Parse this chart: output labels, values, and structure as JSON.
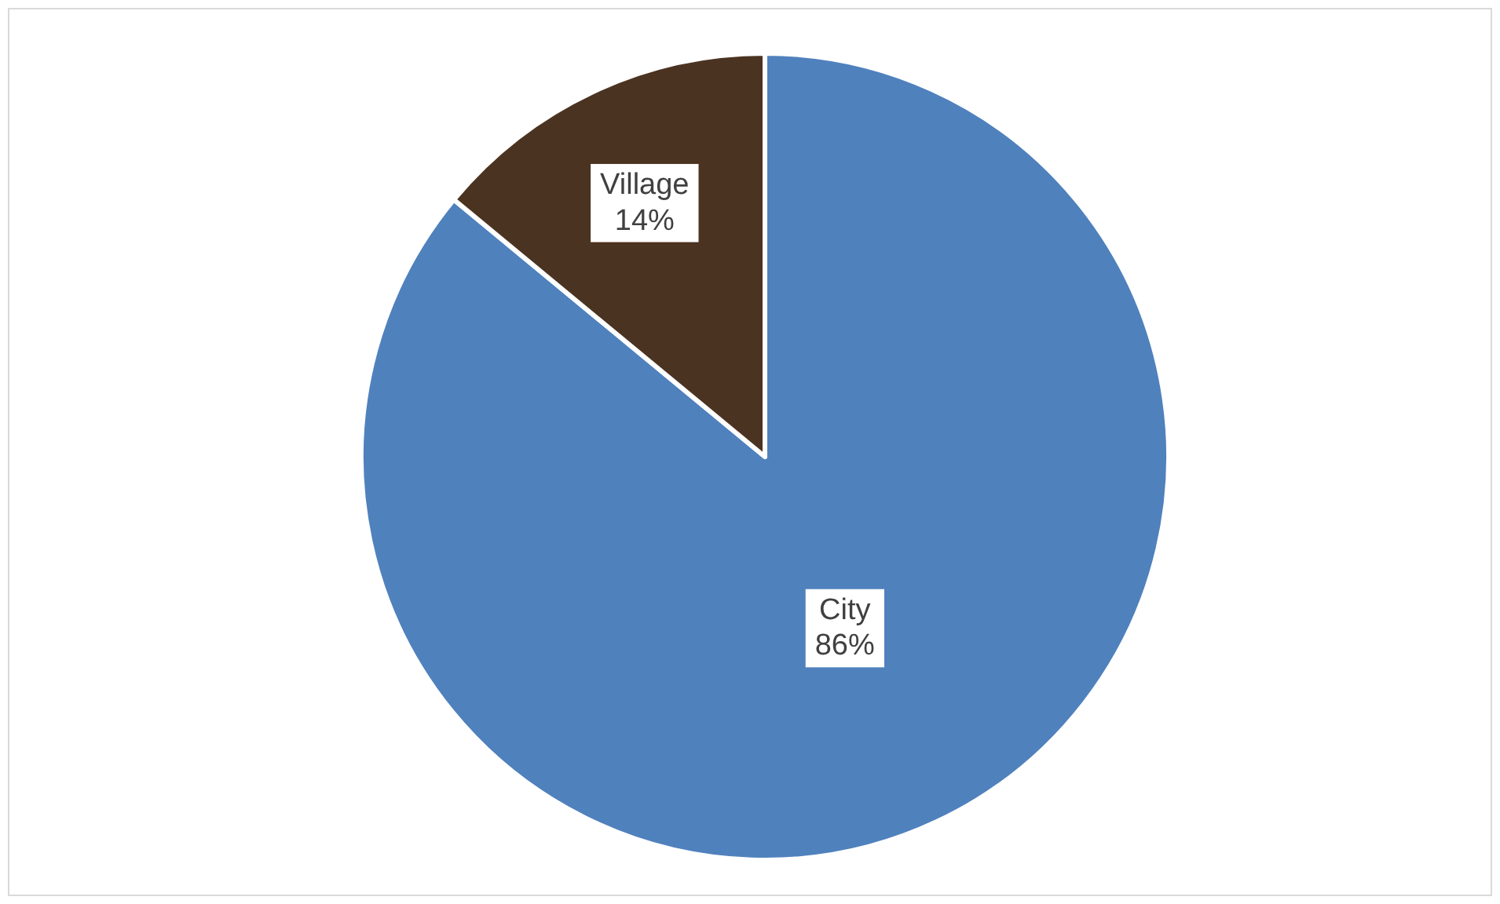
{
  "chart_data": {
    "type": "pie",
    "categories": [
      "City",
      "Village"
    ],
    "values": [
      86,
      14
    ],
    "colors": [
      "#4f81bd",
      "#4b3321"
    ],
    "value_labels": [
      "86%",
      "14%"
    ],
    "legend": false
  }
}
